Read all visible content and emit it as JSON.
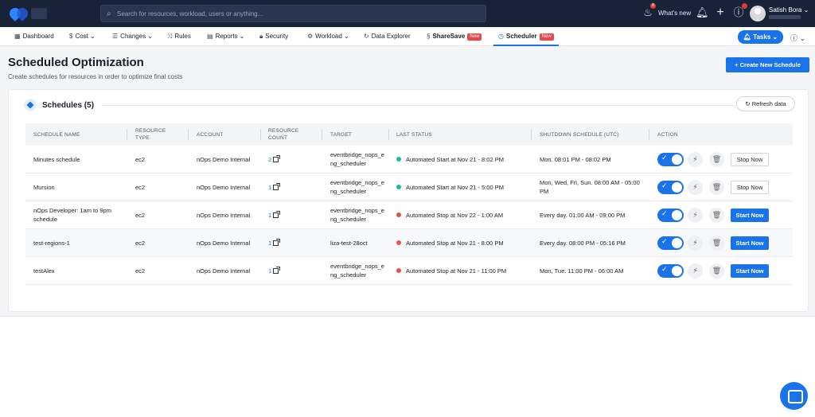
{
  "topbar": {
    "search_placeholder": "Search for resources, workload, users or anything...",
    "whats_new": "What's new",
    "whats_new_badge": "8",
    "user_name": "Satish Bora"
  },
  "nav": {
    "items": [
      {
        "label": "Dashboard"
      },
      {
        "label": "Cost"
      },
      {
        "label": "Changes"
      },
      {
        "label": "Rules"
      },
      {
        "label": "Reports"
      },
      {
        "label": "Security"
      },
      {
        "label": "Workload"
      },
      {
        "label": "Data Explorer"
      },
      {
        "label": "ShareSave",
        "badge": "New"
      },
      {
        "label": "Scheduler",
        "badge": "New"
      }
    ],
    "tasks": "Tasks"
  },
  "page": {
    "title": "Scheduled Optimization",
    "subtitle": "Create schedules for resources in order to optimize final costs",
    "create_button": "Create New Schedule"
  },
  "card": {
    "title": "Schedules (5)",
    "refresh": "Refresh data"
  },
  "table": {
    "headers": [
      "SCHEDULE NAME",
      "RESOURCE TYPE",
      "ACCOUNT",
      "RESOURCE COUNT",
      "TARGET",
      "LAST STATUS",
      "SHUTDOWN SCHEDULE (UTC)",
      "ACTION"
    ],
    "rows": [
      {
        "name": "Minutes schedule",
        "type": "ec2",
        "account": "nOps Demo Internal",
        "count": "2",
        "target": "eventbridge_nops_eng_scheduler",
        "status": "Automated Start at Nov 21 - 8:02 PM",
        "status_color": "#26b5b0",
        "schedule": "Mon. 08:01 PM - 08:02 PM",
        "action": "Stop Now"
      },
      {
        "name": "Mursion",
        "type": "ec2",
        "account": "nOps Demo Internal",
        "count": "1",
        "target": "eventbridge_nops_eng_scheduler",
        "status": "Automated Start at Nov 21 - 5:00 PM",
        "status_color": "#26b5b0",
        "schedule": "Mon, Wed, Fri, Sun. 08:00 AM - 05:00 PM",
        "action": "Stop Now"
      },
      {
        "name": "nOps Developer: 1am to 9pm schedule",
        "type": "ec2",
        "account": "nOps Demo Internal",
        "count": "1",
        "target": "eventbridge_nops_eng_scheduler",
        "status": "Automated Stop at Nov 22 - 1:00 AM",
        "status_color": "#e5534b",
        "schedule": "Every day. 01:00 AM - 09:00 PM",
        "action": "Start Now"
      },
      {
        "name": "test-regions-1",
        "type": "ec2",
        "account": "nOps Demo Internal",
        "count": "1",
        "target": "liza-test-28oct",
        "status": "Automated Stop at Nov 21 - 8:00 PM",
        "status_color": "#e5534b",
        "schedule": "Every day. 08:00 PM - 05:16 PM",
        "action": "Start Now"
      },
      {
        "name": "testAlex",
        "type": "ec2",
        "account": "nOps Demo Internal",
        "count": "1",
        "target": "eventbridge_nops_eng_scheduler",
        "status": "Automated Stop at Nov 21 - 11:00 PM",
        "status_color": "#e5534b",
        "schedule": "Mon, Tue. 11:00 PM - 06:00 AM",
        "action": "Start Now"
      }
    ]
  },
  "colors": {
    "accent": "#1a73e8",
    "topbar": "#18233a",
    "status_ok": "#26b5b0",
    "status_stop": "#e5534b"
  }
}
